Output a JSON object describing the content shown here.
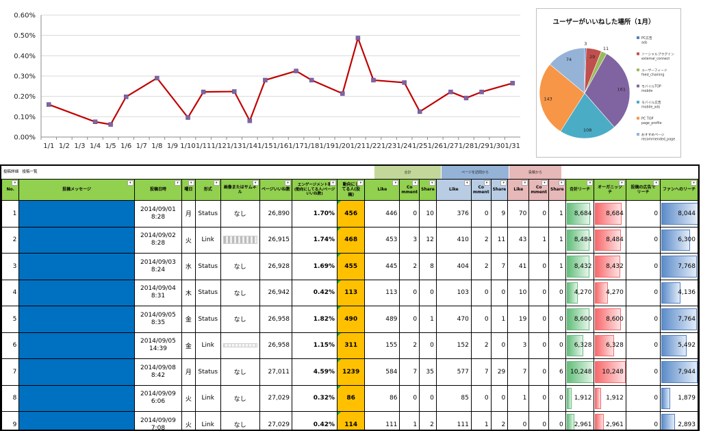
{
  "chart_data": [
    {
      "type": "line",
      "title": "",
      "x": [
        "1/1",
        "1/2",
        "1/3",
        "1/4",
        "1/5",
        "1/6",
        "1/7",
        "1/8",
        "1/9",
        "1/10",
        "1/11",
        "1/12",
        "1/13",
        "1/14",
        "1/15",
        "1/16",
        "1/17",
        "1/18",
        "1/19",
        "1/20",
        "1/21",
        "1/22",
        "1/23",
        "1/24",
        "1/25",
        "1/26",
        "1/27",
        "1/28",
        "1/29",
        "1/30",
        "1/31"
      ],
      "y_ticks": [
        "0.00%",
        "0.10%",
        "0.20%",
        "0.30%",
        "0.40%",
        "0.50%",
        "0.60%"
      ],
      "ylim": [
        0,
        0.6
      ],
      "points": [
        {
          "x": "1/1",
          "y": 0.16
        },
        {
          "x": "1/4",
          "y": 0.075
        },
        {
          "x": "1/5",
          "y": 0.062
        },
        {
          "x": "1/6",
          "y": 0.198
        },
        {
          "x": "1/8",
          "y": 0.29
        },
        {
          "x": "1/10",
          "y": 0.096
        },
        {
          "x": "1/11",
          "y": 0.222
        },
        {
          "x": "1/13",
          "y": 0.224
        },
        {
          "x": "1/14",
          "y": 0.08
        },
        {
          "x": "1/15",
          "y": 0.28
        },
        {
          "x": "1/17",
          "y": 0.325
        },
        {
          "x": "1/18",
          "y": 0.28
        },
        {
          "x": "1/20",
          "y": 0.214
        },
        {
          "x": "1/21",
          "y": 0.487
        },
        {
          "x": "1/22",
          "y": 0.28
        },
        {
          "x": "1/24",
          "y": 0.268
        },
        {
          "x": "1/25",
          "y": 0.125
        },
        {
          "x": "1/27",
          "y": 0.222
        },
        {
          "x": "1/28",
          "y": 0.192
        },
        {
          "x": "1/29",
          "y": 0.222
        },
        {
          "x": "1/31",
          "y": 0.265
        }
      ],
      "line_color": "#c00000",
      "marker_color": "#8064a2",
      "grid": true
    },
    {
      "type": "pie",
      "title": "ユーザーがいいねした場所（1月）",
      "slices": [
        {
          "value": 3,
          "label": "3",
          "legend": [
            "PC広告",
            "ads"
          ],
          "color": "#4f81bd"
        },
        {
          "value": 29,
          "label": "29",
          "legend": [
            "ソーシャルプラグイン",
            "external_connect"
          ],
          "color": "#c0504d"
        },
        {
          "value": 11,
          "label": "11",
          "legend": [
            "ユーザーフィード",
            "feed_chaining"
          ],
          "color": "#9bbb59"
        },
        {
          "value": 161,
          "label": "161",
          "legend": [
            "モバイルTOP",
            "mobile"
          ],
          "color": "#8064a2"
        },
        {
          "value": 108,
          "label": "108",
          "legend": [
            "モバイル広告",
            "mobile_ads"
          ],
          "color": "#4bacc6"
        },
        {
          "value": 143,
          "label": "143",
          "legend": [
            "PC TOP",
            "page_profile"
          ],
          "color": "#f79646"
        },
        {
          "value": 74,
          "label": "74",
          "legend": [
            "おすすめページ",
            "recommended_page"
          ],
          "color": "#95b3d7"
        }
      ],
      "legend_position": "right"
    }
  ],
  "sheet": {
    "title": "投稿詳細　投稿一覧",
    "groups": [
      {
        "label": "合計",
        "color": "#c4d79b"
      },
      {
        "label": "ページを訪問から",
        "color": "#95b3d7"
      },
      {
        "label": "投稿から",
        "color": "#e6b8b7"
      }
    ],
    "headers": {
      "no": "No.",
      "message": "投稿メッセージ",
      "datetime": "投稿日時",
      "weekday": "曜日",
      "format": "形式",
      "image": "画像またはサムネ\nル",
      "page_likes": "ページいいね数",
      "engagement": "エンゲージメント率\n(動向にしてる人/ページ\nいいね数)",
      "talking": "動向にし\nてる人(投稿)",
      "like": "Like",
      "comment": "Co\nmment",
      "share": "Share",
      "total_reach": "合計リーチ",
      "organic": "オーガニック\nチ",
      "ad_reach": "投稿の広告で\nリーチ",
      "fan_reach": "ファンへのリーチ"
    },
    "rows": [
      {
        "no": "1",
        "date": "2014/09/01",
        "time": "8:28",
        "wd": "月",
        "fmt": "Status",
        "img": "なし",
        "pl": "26,890",
        "eng": "1.70%",
        "talk": "456",
        "t": [
          "446",
          "0",
          "10"
        ],
        "p": [
          "376",
          "0",
          "9"
        ],
        "s": [
          "70",
          "0",
          "1"
        ],
        "reach": "8,684",
        "organic": "8,684",
        "ad": "0",
        "fan": "8,044",
        "reach_v": 8684,
        "organic_v": 8684,
        "fan_v": 8044
      },
      {
        "no": "2",
        "date": "2014/09/02",
        "time": "8:28",
        "wd": "火",
        "fmt": "Link",
        "img": "",
        "pl": "26,915",
        "eng": "1.74%",
        "talk": "468",
        "t": [
          "453",
          "3",
          "12"
        ],
        "p": [
          "410",
          "2",
          "11"
        ],
        "s": [
          "43",
          "1",
          "1"
        ],
        "reach": "8,484",
        "organic": "8,484",
        "ad": "0",
        "fan": "6,300",
        "reach_v": 8484,
        "organic_v": 8484,
        "fan_v": 6300
      },
      {
        "no": "3",
        "date": "2014/09/03",
        "time": "8:24",
        "wd": "水",
        "fmt": "Status",
        "img": "なし",
        "pl": "26,928",
        "eng": "1.69%",
        "talk": "455",
        "t": [
          "445",
          "2",
          "8"
        ],
        "p": [
          "404",
          "2",
          "7"
        ],
        "s": [
          "41",
          "0",
          "1"
        ],
        "reach": "8,432",
        "organic": "8,432",
        "ad": "0",
        "fan": "7,768",
        "reach_v": 8432,
        "organic_v": 8432,
        "fan_v": 7768
      },
      {
        "no": "4",
        "date": "2014/09/04",
        "time": "8:31",
        "wd": "木",
        "fmt": "Status",
        "img": "なし",
        "pl": "26,942",
        "eng": "0.42%",
        "talk": "113",
        "t": [
          "113",
          "0",
          "0"
        ],
        "p": [
          "103",
          "0",
          "0"
        ],
        "s": [
          "10",
          "0",
          "0"
        ],
        "reach": "4,270",
        "organic": "4,270",
        "ad": "0",
        "fan": "4,136",
        "reach_v": 4270,
        "organic_v": 4270,
        "fan_v": 4136
      },
      {
        "no": "5",
        "date": "2014/09/05",
        "time": "8:35",
        "wd": "金",
        "fmt": "Status",
        "img": "なし",
        "pl": "26,958",
        "eng": "1.82%",
        "talk": "490",
        "t": [
          "489",
          "0",
          "1"
        ],
        "p": [
          "470",
          "0",
          "1"
        ],
        "s": [
          "19",
          "0",
          "0"
        ],
        "reach": "8,600",
        "organic": "8,600",
        "ad": "0",
        "fan": "7,764",
        "reach_v": 8600,
        "organic_v": 8600,
        "fan_v": 7764
      },
      {
        "no": "6",
        "date": "2014/09/05",
        "time": "14:39",
        "wd": "金",
        "fmt": "Link",
        "img": "",
        "pl": "26,958",
        "eng": "1.15%",
        "talk": "311",
        "t": [
          "155",
          "2",
          "0"
        ],
        "p": [
          "152",
          "2",
          "0"
        ],
        "s": [
          "3",
          "0",
          "0"
        ],
        "reach": "6,328",
        "organic": "6,328",
        "ad": "0",
        "fan": "5,492",
        "reach_v": 6328,
        "organic_v": 6328,
        "fan_v": 5492
      },
      {
        "no": "7",
        "date": "2014/09/08",
        "time": "8:42",
        "wd": "月",
        "fmt": "Status",
        "img": "なし",
        "pl": "27,011",
        "eng": "4.59%",
        "talk": "1239",
        "t": [
          "584",
          "7",
          "35"
        ],
        "p": [
          "577",
          "7",
          "29"
        ],
        "s": [
          "7",
          "0",
          "6"
        ],
        "reach": "10,248",
        "organic": "10,248",
        "ad": "0",
        "fan": "7,944",
        "reach_v": 10248,
        "organic_v": 10248,
        "fan_v": 7944
      },
      {
        "no": "8",
        "date": "2014/09/09",
        "time": "6:06",
        "wd": "火",
        "fmt": "Link",
        "img": "なし",
        "pl": "27,029",
        "eng": "0.32%",
        "talk": "86",
        "t": [
          "86",
          "0",
          "0"
        ],
        "p": [
          "85",
          "0",
          "0"
        ],
        "s": [
          "1",
          "0",
          "0"
        ],
        "reach": "1,912",
        "organic": "1,912",
        "ad": "0",
        "fan": "1,879",
        "reach_v": 1912,
        "organic_v": 1912,
        "fan_v": 1879
      },
      {
        "no": "9",
        "date": "2014/09/09",
        "time": "7:08",
        "wd": "火",
        "fmt": "Link",
        "img": "なし",
        "pl": "27,029",
        "eng": "0.42%",
        "talk": "114",
        "t": [
          "111",
          "1",
          "2"
        ],
        "p": [
          "111",
          "1",
          "2"
        ],
        "s": [
          "0",
          "0",
          "0"
        ],
        "reach": "2,961",
        "organic": "2,961",
        "ad": "0",
        "fan": "2,893",
        "reach_v": 2961,
        "organic_v": 2961,
        "fan_v": 2893
      }
    ],
    "colors": {
      "header_green": "#92d050",
      "header_blue": "#b8cce4",
      "header_pink": "#e6b8b7",
      "message_block": "#0070c0",
      "talking_highlight": "#ffc000"
    }
  }
}
